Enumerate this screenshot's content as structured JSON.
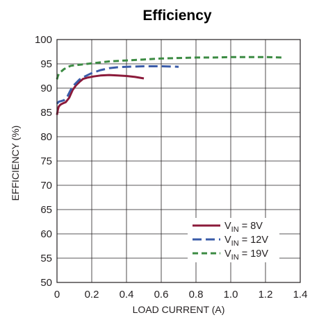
{
  "chart_data": {
    "type": "line",
    "title": "Efficiency",
    "xlabel": "LOAD CURRENT (A)",
    "ylabel": "EFFICIENCY (%)",
    "xlim": [
      0,
      1.4
    ],
    "ylim": [
      50,
      100
    ],
    "xticks": [
      "0",
      "0.2",
      "0.4",
      "0.6",
      "0.8",
      "1.0",
      "1.2",
      "1.4"
    ],
    "yticks": [
      "50",
      "55",
      "60",
      "65",
      "70",
      "75",
      "80",
      "85",
      "90",
      "95",
      "100"
    ],
    "grid": true,
    "legend_position": "bottom-right",
    "series": [
      {
        "legend": {
          "prefix": "V",
          "sub": "IN",
          "suffix": " = 8V"
        },
        "color": "#8b1a3a",
        "dash": "solid",
        "x": [
          0,
          0.005,
          0.01,
          0.02,
          0.03,
          0.05,
          0.07,
          0.09,
          0.11,
          0.13,
          0.15,
          0.18,
          0.21,
          0.25,
          0.3,
          0.35,
          0.4,
          0.45,
          0.5
        ],
        "y": [
          84.5,
          85.6,
          86.2,
          86.6,
          86.8,
          87.1,
          88.0,
          89.6,
          90.6,
          91.3,
          91.9,
          92.2,
          92.4,
          92.6,
          92.7,
          92.6,
          92.5,
          92.3,
          92.0
        ]
      },
      {
        "legend": {
          "prefix": "V",
          "sub": "IN",
          "suffix": " = 12V"
        },
        "color": "#3a5ba8",
        "dash": "long",
        "x": [
          0,
          0.01,
          0.02,
          0.04,
          0.06,
          0.08,
          0.1,
          0.13,
          0.16,
          0.2,
          0.25,
          0.3,
          0.35,
          0.4,
          0.5,
          0.6,
          0.7
        ],
        "y": [
          86.8,
          87.2,
          87.3,
          87.5,
          88.3,
          89.7,
          90.7,
          91.8,
          92.4,
          93.1,
          93.7,
          94.1,
          94.3,
          94.4,
          94.5,
          94.5,
          94.4
        ]
      },
      {
        "legend": {
          "prefix": "V",
          "sub": "IN",
          "suffix": " = 19V"
        },
        "color": "#3c8b43",
        "dash": "dash",
        "x": [
          0,
          0.005,
          0.01,
          0.02,
          0.04,
          0.06,
          0.08,
          0.1,
          0.15,
          0.2,
          0.25,
          0.3,
          0.4,
          0.5,
          0.6,
          0.7,
          0.8,
          0.9,
          1.0,
          1.1,
          1.2,
          1.3
        ],
        "y": [
          91.8,
          92.5,
          92.9,
          93.3,
          93.9,
          94.3,
          94.6,
          94.7,
          94.9,
          95.1,
          95.3,
          95.5,
          95.7,
          95.9,
          96.1,
          96.2,
          96.3,
          96.3,
          96.4,
          96.4,
          96.4,
          96.3
        ]
      }
    ]
  }
}
